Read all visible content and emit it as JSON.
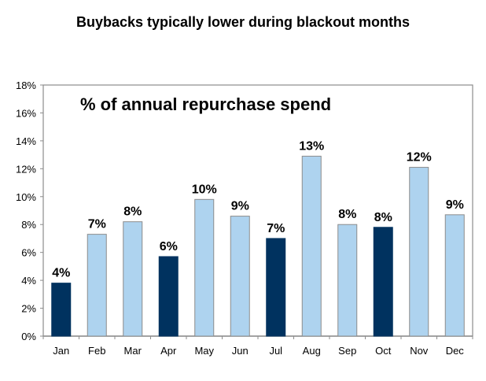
{
  "chart_data": {
    "type": "bar",
    "title": "Buybacks typically lower during blackout months",
    "annotation": "% of annual repurchase spend",
    "xlabel": "",
    "ylabel": "",
    "ylim": [
      0,
      18
    ],
    "yticks": [
      "0%",
      "2%",
      "4%",
      "6%",
      "8%",
      "10%",
      "12%",
      "14%",
      "16%",
      "18%"
    ],
    "categories": [
      "Jan",
      "Feb",
      "Mar",
      "Apr",
      "May",
      "Jun",
      "Jul",
      "Aug",
      "Sep",
      "Oct",
      "Nov",
      "Dec"
    ],
    "values": [
      3.8,
      7.3,
      8.2,
      5.7,
      9.8,
      8.6,
      7.0,
      12.9,
      8.0,
      7.8,
      12.1,
      8.7
    ],
    "data_labels": [
      "4%",
      "7%",
      "8%",
      "6%",
      "10%",
      "9%",
      "7%",
      "13%",
      "8%",
      "8%",
      "12%",
      "9%"
    ],
    "blackout": [
      true,
      false,
      false,
      true,
      false,
      false,
      true,
      false,
      false,
      true,
      false,
      false
    ],
    "grid": false,
    "legend": "none",
    "colors": {
      "blackout": "#00325F",
      "normal": "#AED3EF",
      "border": "#8C8C8C"
    }
  }
}
